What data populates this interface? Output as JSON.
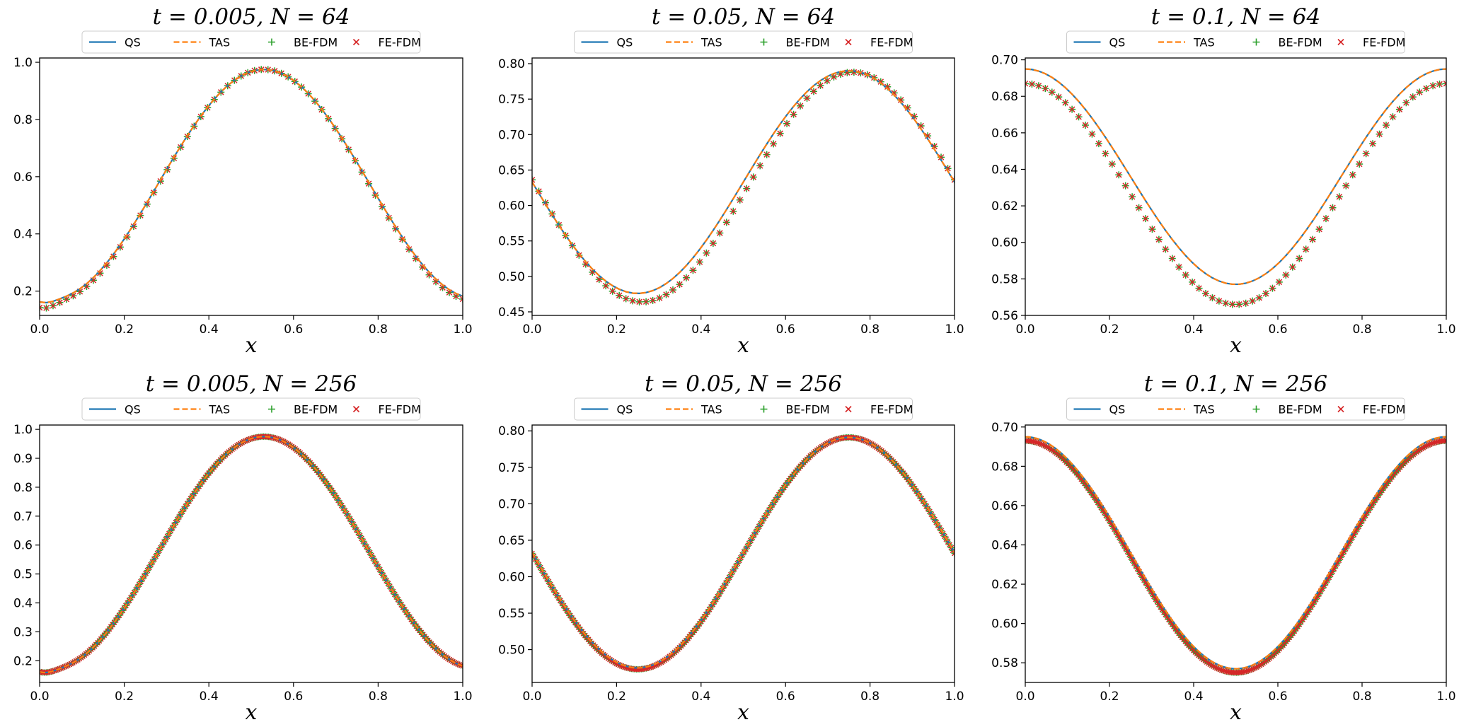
{
  "figure": {
    "colors": {
      "QS": "#1f77b4",
      "TAS": "#ff7f0e",
      "BE-FDM": "#2ca02c",
      "FE-FDM": "#d62728"
    },
    "legend_entries": [
      "QS",
      "TAS",
      "BE-FDM",
      "FE-FDM"
    ],
    "xlabel": "x"
  },
  "chart_data": [
    {
      "type": "line",
      "title": "t = 0.005, N = 64",
      "xlabel": "x",
      "ylabel": "",
      "xlim": [
        0,
        1
      ],
      "ylim": [
        0.115,
        1.015
      ],
      "xticks": [
        "0.0",
        "0.2",
        "0.4",
        "0.6",
        "0.8",
        "1.0"
      ],
      "xtick_values": [
        0,
        0.2,
        0.4,
        0.6,
        0.8,
        1.0
      ],
      "yticks": [
        "0.2",
        "0.4",
        "0.6",
        "0.8",
        "1.0"
      ],
      "ytick_values": [
        0.2,
        0.4,
        0.6,
        0.8,
        1.0
      ],
      "legend": [
        "QS",
        "TAS",
        "BE-FDM",
        "FE-FDM"
      ],
      "legend_position": "top-center",
      "n_points": 64,
      "series": [
        {
          "name": "QS",
          "model": {
            "kind": "sin",
            "c": 0.575,
            "a": 0.4,
            "x0": 0.28,
            "period": 1.0
          },
          "boundary_dip": 0.02
        },
        {
          "name": "TAS",
          "model": {
            "kind": "sin",
            "c": 0.575,
            "a": 0.4,
            "x0": 0.28,
            "period": 1.0
          },
          "boundary_dip": 0.02
        },
        {
          "name": "BE-FDM",
          "model": {
            "kind": "sin",
            "c": 0.57,
            "a": 0.405,
            "x0": 0.28,
            "period": 1.0
          },
          "boundary_dip": 0.03
        },
        {
          "name": "FE-FDM",
          "model": {
            "kind": "sin",
            "c": 0.57,
            "a": 0.405,
            "x0": 0.28,
            "period": 1.0
          },
          "boundary_dip": 0.03
        }
      ]
    },
    {
      "type": "line",
      "title": "t = 0.05, N = 64",
      "xlabel": "x",
      "ylabel": "",
      "xlim": [
        0,
        1
      ],
      "ylim": [
        0.445,
        0.808
      ],
      "xticks": [
        "0.0",
        "0.2",
        "0.4",
        "0.6",
        "0.8",
        "1.0"
      ],
      "xtick_values": [
        0,
        0.2,
        0.4,
        0.6,
        0.8,
        1.0
      ],
      "yticks": [
        "0.45",
        "0.50",
        "0.55",
        "0.60",
        "0.65",
        "0.70",
        "0.75",
        "0.80"
      ],
      "ytick_values": [
        0.45,
        0.5,
        0.55,
        0.6,
        0.65,
        0.7,
        0.75,
        0.8
      ],
      "legend": [
        "QS",
        "TAS",
        "BE-FDM",
        "FE-FDM"
      ],
      "legend_position": "top-center",
      "n_points": 64,
      "series": [
        {
          "name": "QS",
          "model": {
            "kind": "sin",
            "c": 0.633,
            "a": 0.157,
            "x0": 0.5,
            "period": 1.0
          },
          "boundary_dip": 0
        },
        {
          "name": "TAS",
          "model": {
            "kind": "sin",
            "c": 0.633,
            "a": 0.157,
            "x0": 0.5,
            "period": 1.0
          },
          "boundary_dip": 0
        },
        {
          "name": "BE-FDM",
          "model": {
            "kind": "sin",
            "c": 0.626,
            "a": 0.162,
            "x0": 0.51,
            "period": 1.0
          },
          "boundary_dip": 0
        },
        {
          "name": "FE-FDM",
          "model": {
            "kind": "sin",
            "c": 0.626,
            "a": 0.162,
            "x0": 0.51,
            "period": 1.0
          },
          "boundary_dip": 0
        }
      ]
    },
    {
      "type": "line",
      "title": "t = 0.1, N = 64",
      "xlabel": "x",
      "ylabel": "",
      "xlim": [
        0,
        1
      ],
      "ylim": [
        0.56,
        0.701
      ],
      "xticks": [
        "0.0",
        "0.2",
        "0.4",
        "0.6",
        "0.8",
        "1.0"
      ],
      "xtick_values": [
        0,
        0.2,
        0.4,
        0.6,
        0.8,
        1.0
      ],
      "yticks": [
        "0.56",
        "0.58",
        "0.60",
        "0.62",
        "0.64",
        "0.66",
        "0.68",
        "0.70"
      ],
      "ytick_values": [
        0.56,
        0.58,
        0.6,
        0.62,
        0.64,
        0.66,
        0.68,
        0.7
      ],
      "legend": [
        "QS",
        "TAS",
        "BE-FDM",
        "FE-FDM"
      ],
      "legend_position": "top-center",
      "n_points": 64,
      "series": [
        {
          "name": "QS",
          "model": {
            "kind": "cos",
            "c": 0.636,
            "a": 0.059,
            "x0": 0,
            "period": 1.0
          },
          "boundary_dip": 0
        },
        {
          "name": "TAS",
          "model": {
            "kind": "cos",
            "c": 0.636,
            "a": 0.059,
            "x0": 0,
            "period": 1.0
          },
          "boundary_dip": 0
        },
        {
          "name": "BE-FDM",
          "model": {
            "kind": "cos",
            "c": 0.6265,
            "a": 0.0605,
            "x0": 0,
            "period": 1.0
          },
          "boundary_dip": 0
        },
        {
          "name": "FE-FDM",
          "model": {
            "kind": "cos",
            "c": 0.6265,
            "a": 0.0605,
            "x0": 0,
            "period": 1.0
          },
          "boundary_dip": 0
        }
      ]
    },
    {
      "type": "line",
      "title": "t = 0.005, N = 256",
      "xlabel": "x",
      "ylabel": "",
      "xlim": [
        0,
        1
      ],
      "ylim": [
        0.125,
        1.015
      ],
      "xticks": [
        "0.0",
        "0.2",
        "0.4",
        "0.6",
        "0.8",
        "1.0"
      ],
      "xtick_values": [
        0,
        0.2,
        0.4,
        0.6,
        0.8,
        1.0
      ],
      "yticks": [
        "0.2",
        "0.3",
        "0.4",
        "0.5",
        "0.6",
        "0.7",
        "0.8",
        "0.9",
        "1.0"
      ],
      "ytick_values": [
        0.2,
        0.3,
        0.4,
        0.5,
        0.6,
        0.7,
        0.8,
        0.9,
        1.0
      ],
      "legend": [
        "QS",
        "TAS",
        "BE-FDM",
        "FE-FDM"
      ],
      "legend_position": "top-center",
      "n_points": 256,
      "series": [
        {
          "name": "QS",
          "model": {
            "kind": "sin",
            "c": 0.575,
            "a": 0.4,
            "x0": 0.28,
            "period": 1.0
          },
          "boundary_dip": 0.02
        },
        {
          "name": "TAS",
          "model": {
            "kind": "sin",
            "c": 0.575,
            "a": 0.4,
            "x0": 0.28,
            "period": 1.0
          },
          "boundary_dip": 0.02
        },
        {
          "name": "BE-FDM",
          "model": {
            "kind": "sin",
            "c": 0.575,
            "a": 0.4,
            "x0": 0.28,
            "period": 1.0
          },
          "boundary_dip": 0.02
        },
        {
          "name": "FE-FDM",
          "model": {
            "kind": "sin",
            "c": 0.575,
            "a": 0.4,
            "x0": 0.28,
            "period": 1.0
          },
          "boundary_dip": 0.02
        }
      ]
    },
    {
      "type": "line",
      "title": "t = 0.05, N = 256",
      "xlabel": "x",
      "ylabel": "",
      "xlim": [
        0,
        1
      ],
      "ylim": [
        0.455,
        0.808
      ],
      "xticks": [
        "0.0",
        "0.2",
        "0.4",
        "0.6",
        "0.8",
        "1.0"
      ],
      "xtick_values": [
        0,
        0.2,
        0.4,
        0.6,
        0.8,
        1.0
      ],
      "yticks": [
        "0.50",
        "0.55",
        "0.60",
        "0.65",
        "0.70",
        "0.75",
        "0.80"
      ],
      "ytick_values": [
        0.5,
        0.55,
        0.6,
        0.65,
        0.7,
        0.75,
        0.8
      ],
      "legend": [
        "QS",
        "TAS",
        "BE-FDM",
        "FE-FDM"
      ],
      "legend_position": "top-center",
      "n_points": 256,
      "series": [
        {
          "name": "QS",
          "model": {
            "kind": "sin",
            "c": 0.633,
            "a": 0.158,
            "x0": 0.5,
            "period": 1.0
          },
          "boundary_dip": 0
        },
        {
          "name": "TAS",
          "model": {
            "kind": "sin",
            "c": 0.633,
            "a": 0.158,
            "x0": 0.5,
            "period": 1.0
          },
          "boundary_dip": 0
        },
        {
          "name": "BE-FDM",
          "model": {
            "kind": "sin",
            "c": 0.632,
            "a": 0.159,
            "x0": 0.5,
            "period": 1.0
          },
          "boundary_dip": 0
        },
        {
          "name": "FE-FDM",
          "model": {
            "kind": "sin",
            "c": 0.632,
            "a": 0.159,
            "x0": 0.5,
            "period": 1.0
          },
          "boundary_dip": 0
        }
      ]
    },
    {
      "type": "line",
      "title": "t = 0.1, N = 256",
      "xlabel": "x",
      "ylabel": "",
      "xlim": [
        0,
        1
      ],
      "ylim": [
        0.57,
        0.701
      ],
      "xticks": [
        "0.0",
        "0.2",
        "0.4",
        "0.6",
        "0.8",
        "1.0"
      ],
      "xtick_values": [
        0,
        0.2,
        0.4,
        0.6,
        0.8,
        1.0
      ],
      "yticks": [
        "0.58",
        "0.60",
        "0.62",
        "0.64",
        "0.66",
        "0.68",
        "0.70"
      ],
      "ytick_values": [
        0.58,
        0.6,
        0.62,
        0.64,
        0.66,
        0.68,
        0.7
      ],
      "legend": [
        "QS",
        "TAS",
        "BE-FDM",
        "FE-FDM"
      ],
      "legend_position": "top-center",
      "n_points": 256,
      "series": [
        {
          "name": "QS",
          "model": {
            "kind": "cos",
            "c": 0.636,
            "a": 0.059,
            "x0": 0,
            "period": 1.0
          },
          "boundary_dip": 0
        },
        {
          "name": "TAS",
          "model": {
            "kind": "cos",
            "c": 0.636,
            "a": 0.059,
            "x0": 0,
            "period": 1.0
          },
          "boundary_dip": 0
        },
        {
          "name": "BE-FDM",
          "model": {
            "kind": "cos",
            "c": 0.634,
            "a": 0.059,
            "x0": 0,
            "period": 1.0
          },
          "boundary_dip": 0
        },
        {
          "name": "FE-FDM",
          "model": {
            "kind": "cos",
            "c": 0.634,
            "a": 0.059,
            "x0": 0,
            "period": 1.0
          },
          "boundary_dip": 0
        }
      ]
    }
  ]
}
